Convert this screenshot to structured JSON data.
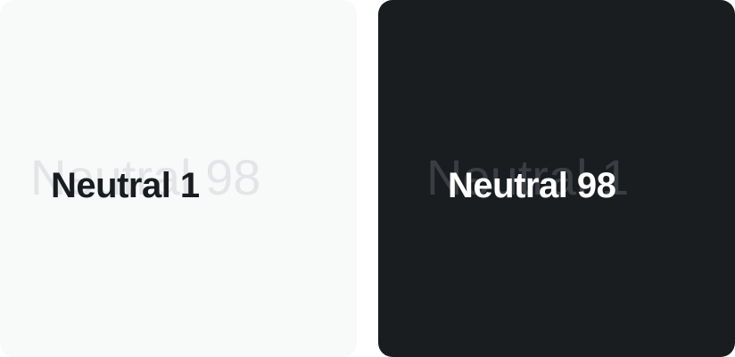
{
  "swatches": [
    {
      "label": "Neutral 1",
      "ghost_label": "Neutral 98",
      "background": "#f8f9f9",
      "text_color": "#191d20",
      "ghost_color": "#e4e5e7"
    },
    {
      "label": "Neutral 98",
      "ghost_label": "Neutral 1",
      "background": "#191d20",
      "text_color": "#ffffff",
      "ghost_color": "#3a3e42"
    }
  ]
}
